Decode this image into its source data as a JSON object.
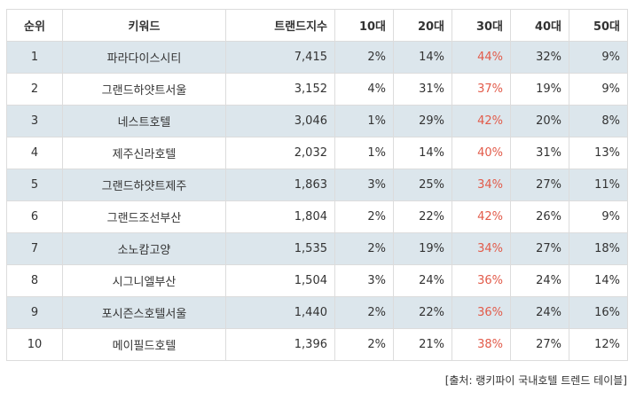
{
  "table": {
    "headers": [
      "순위",
      "키워드",
      "트랜드지수",
      "10대",
      "20대",
      "30대",
      "40대",
      "50대"
    ],
    "highlight_color": "#e25b4a",
    "shade_color": "#dce6ec",
    "rows": [
      [
        "1",
        "파라다이스시티",
        "7,415",
        "2%",
        "14%",
        "44%",
        "32%",
        "9%"
      ],
      [
        "2",
        "그랜드하얏트서울",
        "3,152",
        "4%",
        "31%",
        "37%",
        "19%",
        "9%"
      ],
      [
        "3",
        "네스트호텔",
        "3,046",
        "1%",
        "29%",
        "42%",
        "20%",
        "8%"
      ],
      [
        "4",
        "제주신라호텔",
        "2,032",
        "1%",
        "14%",
        "40%",
        "31%",
        "13%"
      ],
      [
        "5",
        "그랜드하얏트제주",
        "1,863",
        "3%",
        "25%",
        "34%",
        "27%",
        "11%"
      ],
      [
        "6",
        "그랜드조선부산",
        "1,804",
        "2%",
        "22%",
        "42%",
        "26%",
        "9%"
      ],
      [
        "7",
        "소노캄고양",
        "1,535",
        "2%",
        "19%",
        "34%",
        "27%",
        "18%"
      ],
      [
        "8",
        "시그니엘부산",
        "1,504",
        "3%",
        "24%",
        "36%",
        "24%",
        "14%"
      ],
      [
        "9",
        "포시즌스호텔서울",
        "1,440",
        "2%",
        "22%",
        "36%",
        "24%",
        "16%"
      ],
      [
        "10",
        "메이필드호텔",
        "1,396",
        "2%",
        "21%",
        "38%",
        "27%",
        "12%"
      ]
    ]
  },
  "source": "[출처: 랭키파이 국내호텔 트렌드 테이블]"
}
